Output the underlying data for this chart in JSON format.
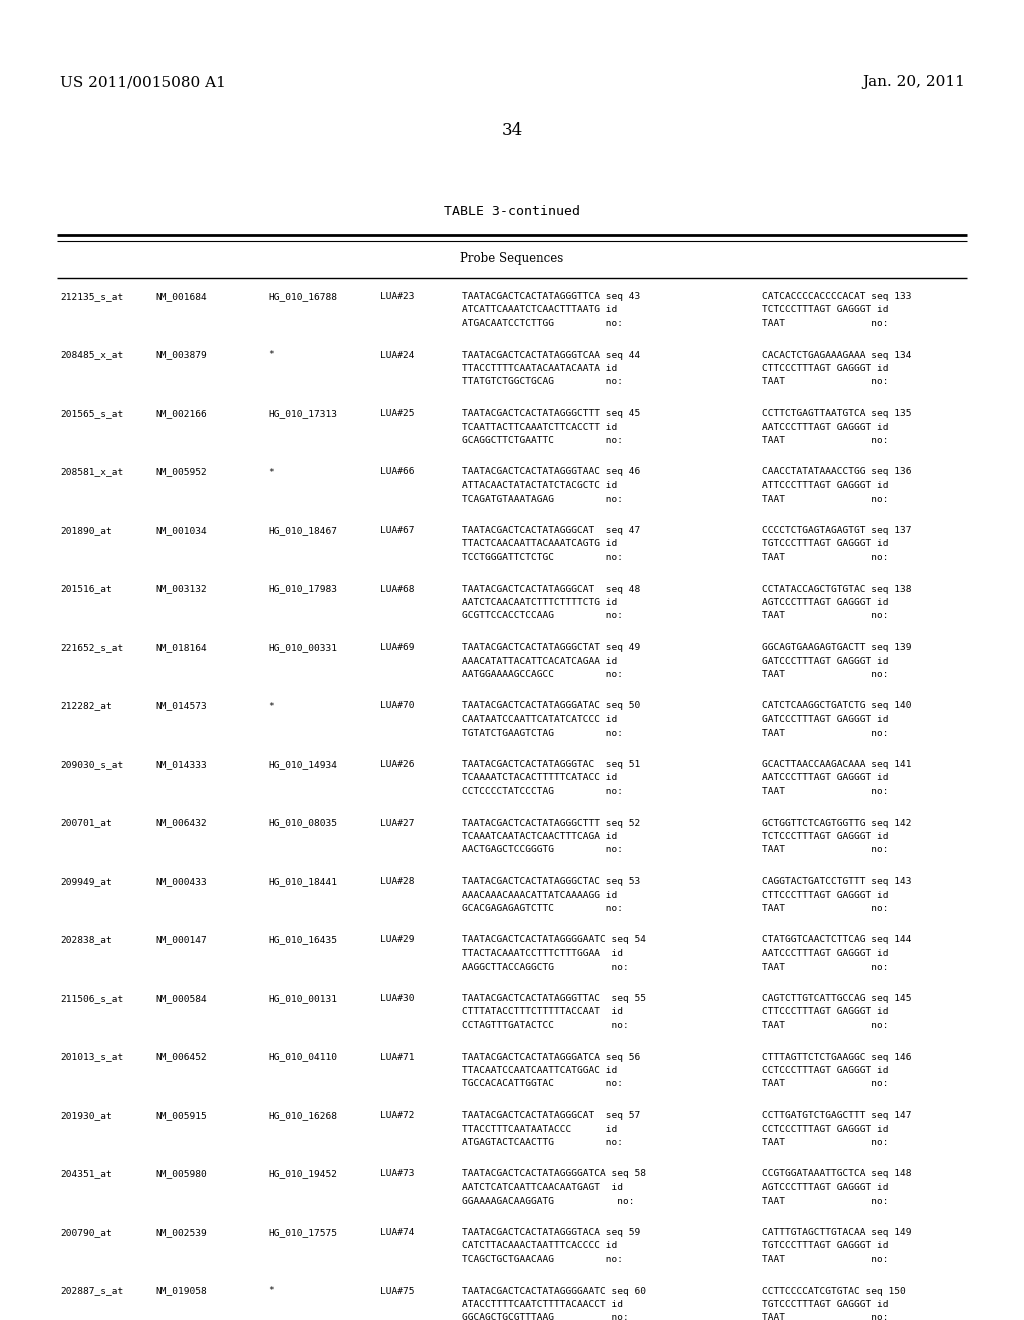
{
  "header_left": "US 2011/0015080 A1",
  "header_right": "Jan. 20, 2011",
  "page_number": "34",
  "table_title": "TABLE 3-continued",
  "col_header": "Probe Sequences",
  "background_color": "#ffffff",
  "text_color": "#000000",
  "rows": [
    {
      "id": "212135_s_at",
      "nm": "NM_001684",
      "hg": "HG_010_16788",
      "lua": "LUA#23",
      "seq1": "TAATACGACTCACTATAGGGTTCA seq 43",
      "seq1b": "ATCATTCAAATCTCAACTTTAATG id",
      "seq1c": "ATGACAATCCTCTTGG         no:",
      "seq2": "CATCACCCCACCCCACAT seq 133",
      "seq2b": "TCTCCCTTTAGT GAGGGT id",
      "seq2c": "TAAT               no:"
    },
    {
      "id": "208485_x_at",
      "nm": "NM_003879",
      "hg": "*",
      "lua": "LUA#24",
      "seq1": "TAATACGACTCACTATAGGGTCAA seq 44",
      "seq1b": "TTACCTTTTCAATACAATACAATA id",
      "seq1c": "TTATGTCTGGCTGCAG         no:",
      "seq2": "CACACTCTGAGAAAGAAA seq 134",
      "seq2b": "CTTCCCTTTAGT GAGGGT id",
      "seq2c": "TAAT               no:"
    },
    {
      "id": "201565_s_at",
      "nm": "NM_002166",
      "hg": "HG_010_17313",
      "lua": "LUA#25",
      "seq1": "TAATACGACTCACTATAGGGCTTT seq 45",
      "seq1b": "TCAATTACTTCAAATCTTCACCTT id",
      "seq1c": "GCAGGCTTCTGAATTC         no:",
      "seq2": "CCTTCTGAGTTAATGTCA seq 135",
      "seq2b": "AATCCCTTTAGT GAGGGT id",
      "seq2c": "TAAT               no:"
    },
    {
      "id": "208581_x_at",
      "nm": "NM_005952",
      "hg": "*",
      "lua": "LUA#66",
      "seq1": "TAATACGACTCACTATAGGGTAAC seq 46",
      "seq1b": "ATTACAACTATACTATCTACGCTC id",
      "seq1c": "TCAGATGTAAATAGAG         no:",
      "seq2": "CAACCTATATAAACCTGG seq 136",
      "seq2b": "ATTCCCTTTAGT GAGGGT id",
      "seq2c": "TAAT               no:"
    },
    {
      "id": "201890_at",
      "nm": "NM_001034",
      "hg": "HG_010_18467",
      "lua": "LUA#67",
      "seq1": "TAATACGACTCACTATAGGGCAT  seq 47",
      "seq1b": "TTACTCAACAATTACAAATCAGTG id",
      "seq1c": "TCCTGGGATTCTCTGC         no:",
      "seq2": "CCCCTCTGAGTAGAGTGT seq 137",
      "seq2b": "TGTCCCTTTAGT GAGGGT id",
      "seq2c": "TAAT               no:"
    },
    {
      "id": "201516_at",
      "nm": "NM_003132",
      "hg": "HG_010_17983",
      "lua": "LUA#68",
      "seq1": "TAATACGACTCACTATAGGGCAT  seq 48",
      "seq1b": "AATCTCAACAATCTTTCTTTTCTG id",
      "seq1c": "GCGTTCCACCTCCAAG         no:",
      "seq2": "CCTATACCAGCTGTGTAC seq 138",
      "seq2b": "AGTCCCTTTAGT GAGGGT id",
      "seq2c": "TAAT               no:"
    },
    {
      "id": "221652_s_at",
      "nm": "NM_018164",
      "hg": "HG_010_00331",
      "lua": "LUA#69",
      "seq1": "TAATACGACTCACTATAGGGCTAT seq 49",
      "seq1b": "AAACATATTACATTCACATCAGAA id",
      "seq1c": "AATGGAAAAGCCAGCC         no:",
      "seq2": "GGCAGTGAAGAGTGACTT seq 139",
      "seq2b": "GATCCCTTTAGT GAGGGT id",
      "seq2c": "TAAT               no:"
    },
    {
      "id": "212282_at",
      "nm": "NM_014573",
      "hg": "*",
      "lua": "LUA#70",
      "seq1": "TAATACGACTCACTATAGGGATAC seq 50",
      "seq1b": "CAATAATCCAATTCATATCATCCC id",
      "seq1c": "TGTATCTGAAGTCTAG         no:",
      "seq2": "CATCTCAAGGCTGATCTG seq 140",
      "seq2b": "GATCCCTTTAGT GAGGGT id",
      "seq2c": "TAAT               no:"
    },
    {
      "id": "209030_s_at",
      "nm": "NM_014333",
      "hg": "HG_010_14934",
      "lua": "LUA#26",
      "seq1": "TAATACGACTCACTATAGGGTAC  seq 51",
      "seq1b": "TCAAAATCTACACTTTTTCATACC id",
      "seq1c": "CCTCCCCTATCCCTAG         no:",
      "seq2": "GCACTTAACCAAGACAAA seq 141",
      "seq2b": "AATCCCTTTAGT GAGGGT id",
      "seq2c": "TAAT               no:"
    },
    {
      "id": "200701_at",
      "nm": "NM_006432",
      "hg": "HG_010_08035",
      "lua": "LUA#27",
      "seq1": "TAATACGACTCACTATAGGGCTTT seq 52",
      "seq1b": "TCAAATCAATACTCAACTTTCAGA id",
      "seq1c": "AACTGAGCTCCGGGTG         no:",
      "seq2": "GCTGGTTCTCAGTGGTTG seq 142",
      "seq2b": "TCTCCCTTTAGT GAGGGT id",
      "seq2c": "TAAT               no:"
    },
    {
      "id": "209949_at",
      "nm": "NM_000433",
      "hg": "HG_010_18441",
      "lua": "LUA#28",
      "seq1": "TAATACGACTCACTATAGGGCTAC seq 53",
      "seq1b": "AAACAAACAAACATTATCAAAAGG id",
      "seq1c": "GCACGAGAGAGTCTTC         no:",
      "seq2": "CAGGTACTGATCCTGTTT seq 143",
      "seq2b": "CTTCCCTTTAGT GAGGGT id",
      "seq2c": "TAAT               no:"
    },
    {
      "id": "202838_at",
      "nm": "NM_000147",
      "hg": "HG_010_16435",
      "lua": "LUA#29",
      "seq1": "TAATACGACTCACTATAGGGGAATC seq 54",
      "seq1b": "TTACTACAAATCCTTTCTTTGGAA  id",
      "seq1c": "AAGGCTTACCAGGCTG          no:",
      "seq2": "CTATGGTCAACTCTTCAG seq 144",
      "seq2b": "AATCCCTTTAGT GAGGGT id",
      "seq2c": "TAAT               no:"
    },
    {
      "id": "211506_s_at",
      "nm": "NM_000584",
      "hg": "HG_010_00131",
      "lua": "LUA#30",
      "seq1": "TAATACGACTCACTATAGGGTTAC  seq 55",
      "seq1b": "CTTTATACCTTTCTTTTTACCAAT  id",
      "seq1c": "CCTAGTTTGATACTCC          no:",
      "seq2": "CAGTCTTGTCATTGCCAG seq 145",
      "seq2b": "CTTCCCTTTAGT GAGGGT id",
      "seq2c": "TAAT               no:"
    },
    {
      "id": "201013_s_at",
      "nm": "NM_006452",
      "hg": "HG_010_04110",
      "lua": "LUA#71",
      "seq1": "TAATACGACTCACTATAGGGATCA seq 56",
      "seq1b": "TTACAATCCAATCAATTCATGGAC id",
      "seq1c": "TGCCACACATTGGTAC         no:",
      "seq2": "CTTTAGTTCTCTGAAGGC seq 146",
      "seq2b": "CCTCCCTTTAGT GAGGGT id",
      "seq2c": "TAAT               no:"
    },
    {
      "id": "201930_at",
      "nm": "NM_005915",
      "hg": "HG_010_16268",
      "lua": "LUA#72",
      "seq1": "TAATACGACTCACTATAGGGCAT  seq 57",
      "seq1b": "TTACCTTTCAATAATACCC      id",
      "seq1c": "ATGAGTACTCAACTTG         no:",
      "seq2": "CCTTGATGTCTGAGCTTT seq 147",
      "seq2b": "CCTCCCTTTAGT GAGGGT id",
      "seq2c": "TAAT               no:"
    },
    {
      "id": "204351_at",
      "nm": "NM_005980",
      "hg": "HG_010_19452",
      "lua": "LUA#73",
      "seq1": "TAATACGACTCACTATAGGGGATCA seq 58",
      "seq1b": "AATCTCATCAATTCAACAATGAGT  id",
      "seq1c": "GGAAAAGACAAGGATG           no:",
      "seq2": "CCGTGGATAAATTGCTCA seq 148",
      "seq2b": "AGTCCCTTTAGT GAGGGT id",
      "seq2c": "TAAT               no:"
    },
    {
      "id": "200790_at",
      "nm": "NM_002539",
      "hg": "HG_010_17575",
      "lua": "LUA#74",
      "seq1": "TAATACGACTCACTATAGGGTACA seq 59",
      "seq1b": "CATCTTACAAACTAATTTCACCCC id",
      "seq1c": "TCAGCTGCTGAACAAG         no:",
      "seq2": "CATTTGTAGCTTGTACAA seq 149",
      "seq2b": "TGTCCCTTTAGT GAGGGT id",
      "seq2c": "TAAT               no:"
    },
    {
      "id": "202887_s_at",
      "nm": "NM_019058",
      "hg": "*",
      "lua": "LUA#75",
      "seq1": "TAATACGACTCACTATAGGGGAATC seq 60",
      "seq1b": "ATACCTTTTCAATCTTTTACAACCT id",
      "seq1c": "GGCAGCTGCGTTTAAG          no:",
      "seq2": "CCTTCCCCATCGTGTAC seq 150",
      "seq2b": "TGTCCCTTTAGT GAGGGT id",
      "seq2c": "TAAT               no:"
    }
  ]
}
